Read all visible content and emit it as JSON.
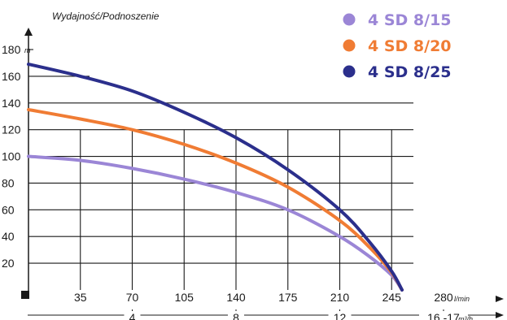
{
  "chart_data": {
    "type": "line",
    "title": "Wydajność/Podnoszenie",
    "xlabel": "",
    "ylabel": "",
    "x_unit": "l/min",
    "x2_unit": "m³/h",
    "y_unit": "m",
    "xlim": [
      0,
      280
    ],
    "ylim": [
      0,
      180
    ],
    "x_ticks": [
      35,
      70,
      105,
      140,
      175,
      210,
      245,
      280
    ],
    "y_ticks": [
      20,
      40,
      60,
      80,
      100,
      120,
      140,
      160,
      180
    ],
    "x2_ticks": [
      {
        "label": "4",
        "x": 70
      },
      {
        "label": "8",
        "x": 140
      },
      {
        "label": "12",
        "x": 210
      },
      {
        "label": "16 -17",
        "x": 280
      }
    ],
    "grid": true,
    "legend_position": "top-right",
    "series": [
      {
        "name": "4 SD 8/15",
        "color": "#9b86d6",
        "points": [
          [
            0,
            100
          ],
          [
            35,
            97
          ],
          [
            70,
            91
          ],
          [
            105,
            83
          ],
          [
            140,
            73
          ],
          [
            175,
            60
          ],
          [
            210,
            40
          ],
          [
            230,
            25
          ],
          [
            245,
            11
          ],
          [
            252,
            0
          ]
        ]
      },
      {
        "name": "4 SD 8/20",
        "color": "#f07c34",
        "points": [
          [
            0,
            135
          ],
          [
            35,
            128
          ],
          [
            70,
            120
          ],
          [
            105,
            109
          ],
          [
            140,
            95
          ],
          [
            175,
            77
          ],
          [
            210,
            52
          ],
          [
            230,
            32
          ],
          [
            245,
            13
          ],
          [
            252,
            0
          ]
        ]
      },
      {
        "name": "4 SD 8/25",
        "color": "#2b2f8c",
        "points": [
          [
            0,
            169
          ],
          [
            35,
            160
          ],
          [
            70,
            149
          ],
          [
            105,
            133
          ],
          [
            140,
            114
          ],
          [
            175,
            90
          ],
          [
            210,
            60
          ],
          [
            230,
            36
          ],
          [
            245,
            14
          ],
          [
            252,
            0
          ]
        ]
      }
    ]
  }
}
